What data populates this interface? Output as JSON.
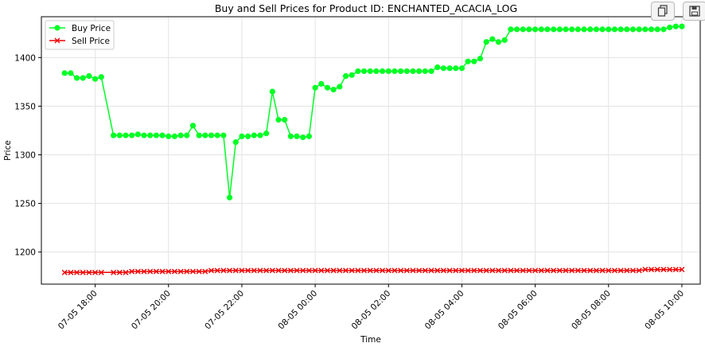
{
  "toolbar": {
    "copy_icon": "copy-icon",
    "save_icon": "save-icon"
  },
  "chart_data": {
    "type": "line",
    "title": "Buy and Sell Prices for Product ID: ENCHANTED_ACACIA_LOG",
    "xlabel": "Time",
    "ylabel": "Price",
    "xlim": [
      "07-05 16:32",
      "08-05 10:30"
    ],
    "ylim": [
      1167,
      1442
    ],
    "x_ticks": [
      "07-05 18:00",
      "07-05 20:00",
      "07-05 22:00",
      "08-05 00:00",
      "08-05 02:00",
      "08-05 04:00",
      "08-05 06:00",
      "08-05 08:00",
      "08-05 10:00"
    ],
    "x_tick_labels": [
      "07-05 18:00",
      "07-05 20:00",
      "07-05 22:00",
      "08-05 00:00",
      "08-05 02:00",
      "08-05 04:00",
      "08-05 06:00",
      "08-05 08:00",
      "08-05 10:00"
    ],
    "y_ticks": [
      1200,
      1250,
      1300,
      1350,
      1400
    ],
    "y_tick_labels": [
      "1200",
      "1250",
      "1300",
      "1350",
      "1400"
    ],
    "grid": true,
    "legend_position": "top-left",
    "x": [
      "07-05 17:10",
      "07-05 17:20",
      "07-05 17:30",
      "07-05 17:40",
      "07-05 17:50",
      "07-05 18:00",
      "07-05 18:10",
      "07-05 18:30",
      "07-05 18:40",
      "07-05 18:50",
      "07-05 19:00",
      "07-05 19:10",
      "07-05 19:20",
      "07-05 19:30",
      "07-05 19:40",
      "07-05 19:50",
      "07-05 20:00",
      "07-05 20:10",
      "07-05 20:20",
      "07-05 20:30",
      "07-05 20:40",
      "07-05 20:50",
      "07-05 21:00",
      "07-05 21:10",
      "07-05 21:20",
      "07-05 21:30",
      "07-05 21:40",
      "07-05 21:50",
      "07-05 22:00",
      "07-05 22:10",
      "07-05 22:20",
      "07-05 22:30",
      "07-05 22:40",
      "07-05 22:50",
      "07-05 23:00",
      "07-05 23:10",
      "07-05 23:20",
      "07-05 23:30",
      "07-05 23:40",
      "07-05 23:50",
      "08-05 00:00",
      "08-05 00:10",
      "08-05 00:20",
      "08-05 00:30",
      "08-05 00:40",
      "08-05 00:50",
      "08-05 01:00",
      "08-05 01:10",
      "08-05 01:20",
      "08-05 01:30",
      "08-05 01:40",
      "08-05 01:50",
      "08-05 02:00",
      "08-05 02:10",
      "08-05 02:20",
      "08-05 02:30",
      "08-05 02:40",
      "08-05 02:50",
      "08-05 03:00",
      "08-05 03:10",
      "08-05 03:20",
      "08-05 03:30",
      "08-05 03:40",
      "08-05 03:50",
      "08-05 04:00",
      "08-05 04:10",
      "08-05 04:20",
      "08-05 04:30",
      "08-05 04:40",
      "08-05 04:50",
      "08-05 05:00",
      "08-05 05:10",
      "08-05 05:20",
      "08-05 05:30",
      "08-05 05:40",
      "08-05 05:50",
      "08-05 06:00",
      "08-05 06:10",
      "08-05 06:20",
      "08-05 06:30",
      "08-05 06:40",
      "08-05 06:50",
      "08-05 07:00",
      "08-05 07:10",
      "08-05 07:20",
      "08-05 07:30",
      "08-05 07:40",
      "08-05 07:50",
      "08-05 08:00",
      "08-05 08:10",
      "08-05 08:20",
      "08-05 08:30",
      "08-05 08:40",
      "08-05 08:50",
      "08-05 09:00",
      "08-05 09:10",
      "08-05 09:20",
      "08-05 09:30",
      "08-05 09:40",
      "08-05 09:50",
      "08-05 10:00"
    ],
    "series": [
      {
        "name": "Buy Price",
        "color": "#00ff24",
        "marker": "circle",
        "values": [
          1384,
          1384,
          1379,
          1379,
          1381,
          1378,
          1380,
          1320,
          1320,
          1320,
          1320,
          1321,
          1320,
          1320,
          1320,
          1320,
          1319,
          1319,
          1320,
          1320,
          1330,
          1320,
          1320,
          1320,
          1320,
          1320,
          1256,
          1313,
          1319,
          1319,
          1320,
          1320,
          1322,
          1365,
          1336,
          1336,
          1319,
          1319,
          1318,
          1319,
          1369,
          1373,
          1369,
          1367,
          1370,
          1381,
          1382,
          1386,
          1386,
          1386,
          1386,
          1386,
          1386,
          1386,
          1386,
          1386,
          1386,
          1386,
          1386,
          1386,
          1390,
          1389,
          1389,
          1389,
          1389,
          1396,
          1396,
          1399,
          1416,
          1419,
          1416,
          1418,
          1429,
          1429,
          1429,
          1429,
          1429,
          1429,
          1429,
          1429,
          1429,
          1429,
          1429,
          1429,
          1429,
          1429,
          1429,
          1429,
          1429,
          1429,
          1429,
          1429,
          1429,
          1429,
          1429,
          1429,
          1429,
          1429,
          1431,
          1432,
          1432
        ]
      },
      {
        "name": "Sell Price",
        "color": "#ee0000",
        "marker": "x",
        "values": [
          1179,
          1179,
          1179,
          1179,
          1179,
          1179,
          1179,
          1179,
          1179,
          1179,
          1180,
          1180,
          1180,
          1180,
          1180,
          1180,
          1180,
          1180,
          1180,
          1180,
          1180,
          1180,
          1180,
          1181,
          1181,
          1181,
          1181,
          1181,
          1181,
          1181,
          1181,
          1181,
          1181,
          1181,
          1181,
          1181,
          1181,
          1181,
          1181,
          1181,
          1181,
          1181,
          1181,
          1181,
          1181,
          1181,
          1181,
          1181,
          1181,
          1181,
          1181,
          1181,
          1181,
          1181,
          1181,
          1181,
          1181,
          1181,
          1181,
          1181,
          1181,
          1181,
          1181,
          1181,
          1181,
          1181,
          1181,
          1181,
          1181,
          1181,
          1181,
          1181,
          1181,
          1181,
          1181,
          1181,
          1181,
          1181,
          1181,
          1181,
          1181,
          1181,
          1181,
          1181,
          1181,
          1181,
          1181,
          1181,
          1181,
          1181,
          1181,
          1181,
          1181,
          1181,
          1182,
          1182,
          1182,
          1182,
          1182,
          1182,
          1182
        ]
      }
    ]
  }
}
